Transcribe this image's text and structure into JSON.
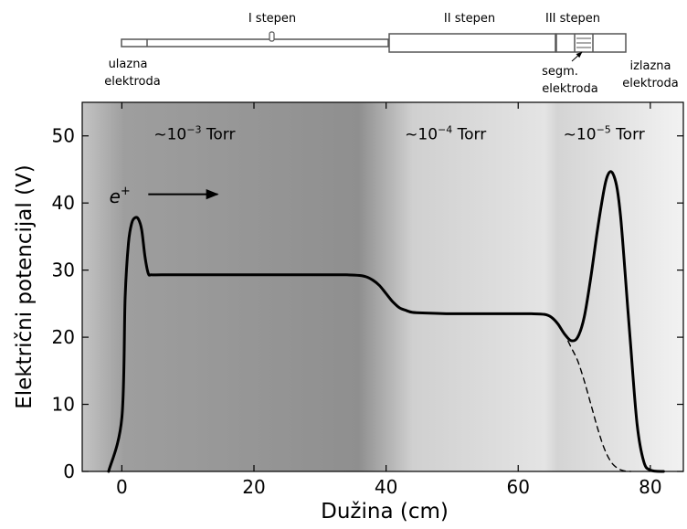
{
  "trap_diagram": {
    "stage_labels": [
      "I stepen",
      "II stepen",
      "III stepen"
    ],
    "electrode_labels": {
      "inlet": [
        "ulazna",
        "elektroda"
      ],
      "segmented": [
        "segm.",
        "elektroda"
      ],
      "outlet": [
        "izlazna",
        "elektroda"
      ]
    }
  },
  "chart_data": {
    "type": "line",
    "title": "",
    "xlabel": "Dužina (cm)",
    "ylabel": "Električni potencijal (V)",
    "xlim": [
      -6,
      85
    ],
    "ylim": [
      0,
      55
    ],
    "xticks": [
      0,
      20,
      40,
      60,
      80
    ],
    "yticks": [
      0,
      10,
      20,
      30,
      40,
      50
    ],
    "grid": false,
    "pressure_regions": [
      {
        "label_prefix": "~10",
        "exponent": "−3",
        "unit": "Torr",
        "at_x": 11
      },
      {
        "label_prefix": "~10",
        "exponent": "−4",
        "unit": "Torr",
        "at_x": 49
      },
      {
        "label_prefix": "~10",
        "exponent": "−5",
        "unit": "Torr",
        "at_x": 73
      }
    ],
    "particle_label": {
      "base": "e",
      "superscript": "+"
    },
    "series": [
      {
        "style": "solid",
        "x": [
          -2,
          0,
          0.5,
          1,
          1.5,
          2,
          2.5,
          3,
          3.5,
          4,
          4.5,
          6,
          10,
          20,
          30,
          34,
          36,
          37,
          38,
          39,
          40,
          41,
          42,
          43,
          44,
          46,
          50,
          55,
          60,
          62,
          64,
          65,
          66,
          67,
          68,
          69,
          70,
          71,
          72,
          73,
          73.5,
          74,
          74.5,
          75,
          75.5,
          76,
          77,
          78,
          79,
          80,
          82
        ],
        "y": [
          0,
          8,
          26,
          34,
          37,
          37.8,
          37.6,
          36,
          32,
          29.5,
          29.3,
          29.3,
          29.3,
          29.3,
          29.3,
          29.3,
          29.2,
          29,
          28.5,
          27.7,
          26.5,
          25.3,
          24.4,
          24,
          23.7,
          23.6,
          23.5,
          23.5,
          23.5,
          23.5,
          23.4,
          23,
          22,
          20.5,
          19.5,
          20,
          23,
          29,
          36,
          42,
          44,
          44.7,
          44,
          42,
          38,
          32,
          19,
          7,
          1.5,
          0.2,
          0
        ]
      },
      {
        "style": "dashed",
        "x": [
          66,
          67,
          68,
          69,
          70,
          71,
          72,
          73,
          74,
          75,
          76,
          77
        ],
        "y": [
          22,
          20.5,
          18.5,
          16.5,
          13.5,
          10,
          6.5,
          3.5,
          1.5,
          0.5,
          0.1,
          0
        ]
      }
    ]
  }
}
